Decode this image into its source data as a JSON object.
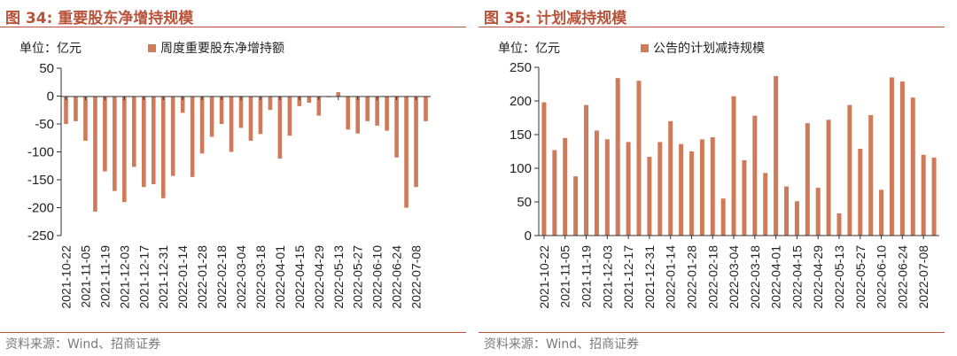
{
  "colors": {
    "accent": "#b8533a",
    "bar": "#cf7a59",
    "source": "#7a7a7a"
  },
  "panels": [
    {
      "title": "图 34:  重要股东净增持规模",
      "source": "资料来源：Wind、招商证券",
      "chart_data": {
        "type": "bar",
        "unit_label": "单位：亿元",
        "legend": "周度重要股东净增持额",
        "ylim": [
          -250,
          50
        ],
        "yticks": [
          50,
          0,
          -50,
          -100,
          -150,
          -200,
          -250
        ],
        "x_tick_labels": [
          "2021-10-22",
          "2021-11-05",
          "2021-11-19",
          "2021-12-03",
          "2021-12-17",
          "2021-12-31",
          "2022-01-14",
          "2022-01-28",
          "2022-02-18",
          "2022-03-04",
          "2022-03-18",
          "2022-04-01",
          "2022-04-15",
          "2022-04-29",
          "2022-05-13",
          "2022-05-27",
          "2022-06-10",
          "2022-06-24",
          "2022-07-08"
        ],
        "series": [
          {
            "name": "周度重要股东净增持额",
            "values": [
              -50,
              -45,
              -80,
              -207,
              -135,
              -170,
              -190,
              -127,
              -163,
              -158,
              -183,
              -143,
              -30,
              -145,
              -103,
              -73,
              -50,
              -100,
              -57,
              -80,
              -68,
              -25,
              -112,
              -71,
              -18,
              -12,
              -35,
              -2,
              7,
              -60,
              -67,
              -45,
              -53,
              -62,
              -110,
              -200,
              -163,
              -45
            ]
          }
        ]
      }
    },
    {
      "title": "图 35:  计划减持规模",
      "source": "资料来源：Wind、招商证券",
      "chart_data": {
        "type": "bar",
        "unit_label": "单位：亿元",
        "legend": "公告的计划减持规模",
        "ylim": [
          0,
          250
        ],
        "yticks": [
          250,
          200,
          150,
          100,
          50,
          0
        ],
        "x_tick_labels": [
          "2021-10-22",
          "2021-11-05",
          "2021-11-19",
          "2021-12-03",
          "2021-12-17",
          "2021-12-31",
          "2022-01-14",
          "2022-01-28",
          "2022-02-18",
          "2022-03-04",
          "2022-03-18",
          "2022-04-01",
          "2022-04-15",
          "2022-04-29",
          "2022-05-13",
          "2022-05-27",
          "2022-06-10",
          "2022-06-24",
          "2022-07-08"
        ],
        "series": [
          {
            "name": "公告的计划减持规模",
            "values": [
              198,
              127,
              145,
              88,
              194,
              156,
              143,
              234,
              139,
              230,
              117,
              139,
              170,
              136,
              125,
              143,
              146,
              55,
              207,
              112,
              178,
              93,
              237,
              73,
              51,
              167,
              71,
              172,
              33,
              194,
              129,
              179,
              68,
              235,
              229,
              205,
              120,
              116
            ]
          }
        ]
      }
    }
  ]
}
